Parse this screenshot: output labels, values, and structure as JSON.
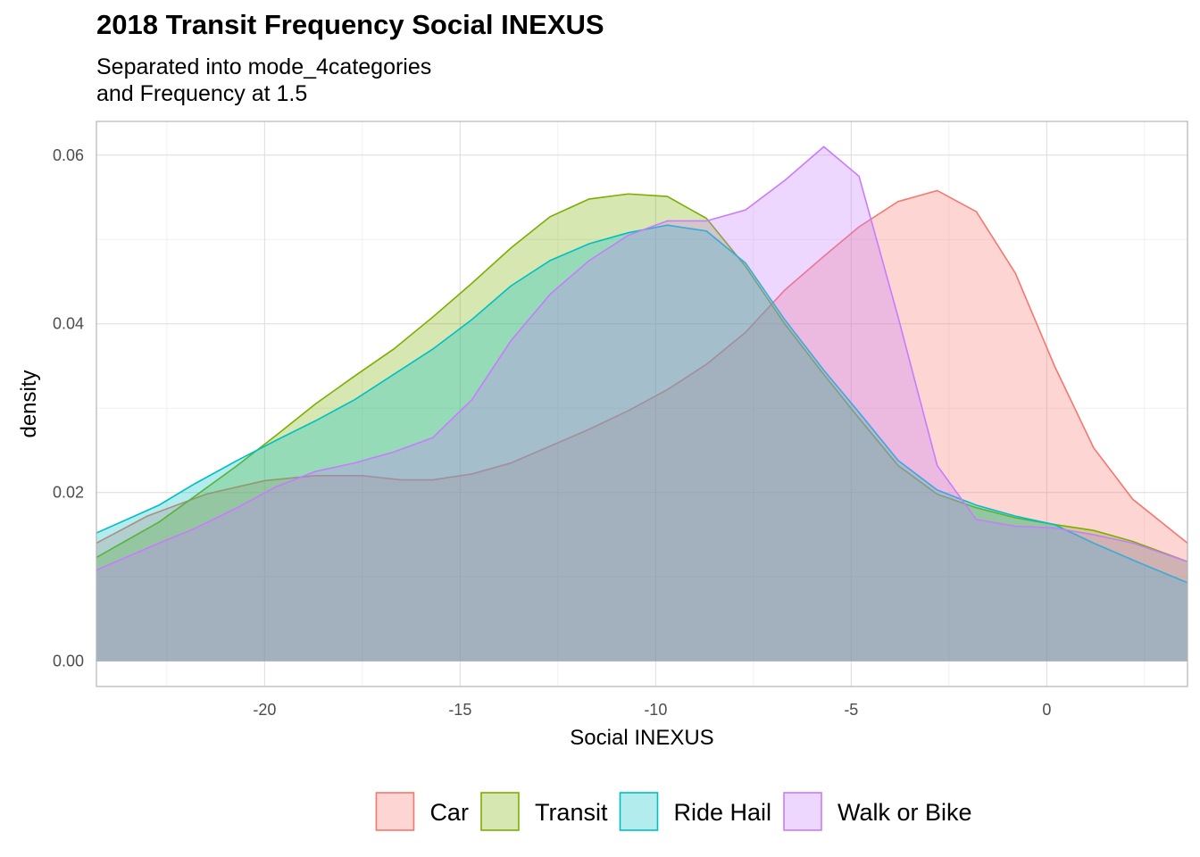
{
  "chart_data": {
    "type": "area",
    "title": "2018 Transit Frequency Social INEXUS",
    "subtitle_lines": [
      "Separated into mode_4categories",
      "and Frequency at 1.5"
    ],
    "xlabel": "Social INEXUS",
    "ylabel": "density",
    "xlim": [
      -24.3,
      3.6
    ],
    "ylim": [
      -0.003,
      0.064
    ],
    "x_ticks": [
      -20,
      -15,
      -10,
      -5,
      0
    ],
    "x_tick_labels": [
      "-20",
      "-15",
      "-10",
      "-5",
      "0"
    ],
    "y_ticks": [
      0.0,
      0.02,
      0.04,
      0.06
    ],
    "y_tick_labels": [
      "0.00",
      "0.02",
      "0.04",
      "0.06"
    ],
    "grid": true,
    "legend_position": "bottom",
    "series": [
      {
        "name": "Car",
        "color": "#F8766D",
        "x": [
          -24.3,
          -23.0,
          -21.5,
          -20.0,
          -18.7,
          -17.5,
          -16.5,
          -15.7,
          -14.7,
          -13.7,
          -12.7,
          -11.7,
          -10.7,
          -9.7,
          -8.7,
          -7.7,
          -6.7,
          -5.7,
          -4.8,
          -3.8,
          -2.8,
          -1.8,
          -0.8,
          0.2,
          1.2,
          2.2,
          3.6
        ],
        "y": [
          0.014,
          0.0172,
          0.0198,
          0.0214,
          0.022,
          0.022,
          0.0215,
          0.0215,
          0.0222,
          0.0235,
          0.0255,
          0.0275,
          0.0297,
          0.0322,
          0.0352,
          0.039,
          0.044,
          0.048,
          0.0515,
          0.0545,
          0.0558,
          0.0533,
          0.046,
          0.035,
          0.0253,
          0.0192,
          0.014
        ]
      },
      {
        "name": "Transit",
        "color": "#7CAE00",
        "x": [
          -24.3,
          -22.7,
          -21.8,
          -20.7,
          -19.7,
          -18.7,
          -17.7,
          -16.7,
          -15.7,
          -14.7,
          -13.7,
          -12.7,
          -11.7,
          -10.7,
          -9.7,
          -8.7,
          -7.7,
          -6.7,
          -5.7,
          -4.8,
          -3.8,
          -2.8,
          -1.8,
          -0.8,
          0.2,
          1.2,
          2.2,
          3.6
        ],
        "y": [
          0.0123,
          0.0165,
          0.0195,
          0.0232,
          0.0268,
          0.0305,
          0.0338,
          0.037,
          0.0408,
          0.0448,
          0.049,
          0.0527,
          0.0548,
          0.0554,
          0.0551,
          0.0525,
          0.0468,
          0.04,
          0.034,
          0.0288,
          0.0232,
          0.0198,
          0.0182,
          0.017,
          0.0162,
          0.0155,
          0.0142,
          0.0118
        ]
      },
      {
        "name": "Ride Hail",
        "color": "#00BFC4",
        "x": [
          -24.3,
          -22.7,
          -21.8,
          -20.7,
          -19.7,
          -18.7,
          -17.7,
          -16.7,
          -15.7,
          -14.7,
          -13.7,
          -12.7,
          -11.7,
          -10.7,
          -9.7,
          -8.7,
          -7.7,
          -6.7,
          -5.7,
          -4.8,
          -3.8,
          -2.8,
          -1.8,
          -0.8,
          0.2,
          1.2,
          2.2,
          3.6
        ],
        "y": [
          0.0152,
          0.0185,
          0.021,
          0.0238,
          0.0262,
          0.0285,
          0.031,
          0.034,
          0.037,
          0.0405,
          0.0445,
          0.0475,
          0.0495,
          0.0508,
          0.0517,
          0.051,
          0.0472,
          0.0405,
          0.0345,
          0.0295,
          0.0238,
          0.0203,
          0.0185,
          0.0172,
          0.0162,
          0.014,
          0.012,
          0.0093
        ]
      },
      {
        "name": "Walk or Bike",
        "color": "#C77CFF",
        "x": [
          -24.3,
          -22.7,
          -21.8,
          -20.7,
          -19.7,
          -18.7,
          -17.7,
          -16.7,
          -15.7,
          -14.7,
          -13.7,
          -12.7,
          -11.7,
          -10.7,
          -9.7,
          -8.7,
          -7.7,
          -6.7,
          -5.7,
          -4.8,
          -3.8,
          -2.8,
          -1.8,
          -0.8,
          0.2,
          1.2,
          2.2,
          3.6
        ],
        "y": [
          0.0108,
          0.014,
          0.0157,
          0.0182,
          0.0207,
          0.0225,
          0.0235,
          0.0248,
          0.0265,
          0.031,
          0.038,
          0.0435,
          0.0475,
          0.0505,
          0.0522,
          0.0522,
          0.0535,
          0.057,
          0.061,
          0.0575,
          0.0408,
          0.0232,
          0.0168,
          0.016,
          0.0158,
          0.015,
          0.014,
          0.0118
        ]
      }
    ]
  }
}
